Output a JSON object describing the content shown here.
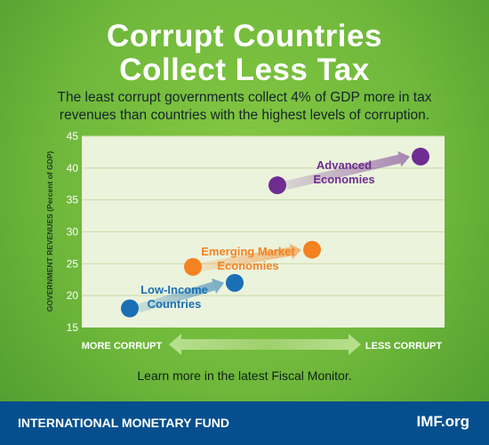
{
  "title_line1": "Corrupt Countries",
  "title_line2": "Collect Less Tax",
  "subtitle_line1": "The least corrupt governments collect 4% of GDP more in tax",
  "subtitle_line2": "revenues than countries with the highest levels of corruption.",
  "footnote": "Learn more in the latest Fiscal Monitor.",
  "footer": {
    "org": "INTERNATIONAL MONETARY FUND",
    "url": "IMF.org"
  },
  "colors": {
    "background": "#76bf3e",
    "plot_area": "#ebf3dc",
    "grid": "#c9dcaa",
    "footer": "#064f8f",
    "low_income": "#1a6fb5",
    "emerging": "#f58220",
    "advanced": "#6f2c91"
  },
  "chart_data": {
    "type": "scatter",
    "ylabel": "GOVERNMENT REVENUES (Percent of GDP)",
    "ylim": [
      15,
      45
    ],
    "y_ticks": [
      15,
      20,
      25,
      30,
      35,
      40,
      45
    ],
    "grid": true,
    "x_axis_left_label": "MORE CORRUPT",
    "x_axis_right_label": "LESS CORRUPT",
    "groups": [
      {
        "label_lines": [
          "Low-Income",
          "Countries"
        ],
        "color": "#1a6fb5",
        "points": [
          {
            "position": "more corrupt",
            "y": 18
          },
          {
            "position": "less corrupt",
            "y": 22
          }
        ]
      },
      {
        "label_lines": [
          "Emerging Market",
          "Economies"
        ],
        "color": "#f58220",
        "points": [
          {
            "position": "more corrupt",
            "y": 24.5
          },
          {
            "position": "less corrupt",
            "y": 27.2
          }
        ]
      },
      {
        "label_lines": [
          "Advanced",
          "Economies"
        ],
        "color": "#6f2c91",
        "points": [
          {
            "position": "more corrupt",
            "y": 37.3
          },
          {
            "position": "less corrupt",
            "y": 41.8
          }
        ]
      }
    ]
  }
}
